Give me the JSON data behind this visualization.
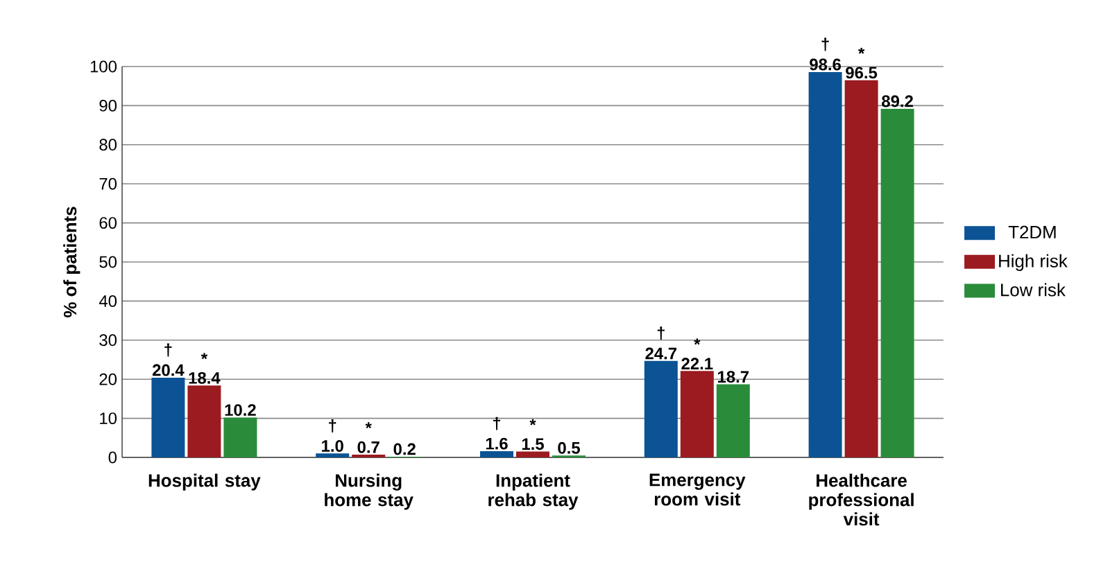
{
  "chart_data": {
    "type": "bar",
    "ylabel": "% of patients",
    "categories": [
      "Hospital stay",
      "Nursing home stay",
      "Inpatient rehab stay",
      "Emergency room visit",
      "Healthcare professional visit"
    ],
    "series": [
      {
        "name": "T2DM",
        "color": "#0b5394",
        "values": [
          20.4,
          1.0,
          1.6,
          24.7,
          98.6
        ],
        "value_labels": [
          "20.4",
          "1.0",
          "1.6",
          "24.7",
          "98.6"
        ]
      },
      {
        "name": "High risk",
        "color": "#9b1b20",
        "values": [
          18.4,
          0.7,
          1.5,
          22.1,
          96.5
        ],
        "value_labels": [
          "18.4",
          "0.7",
          "1.5",
          "22.1",
          "96.5"
        ]
      },
      {
        "name": "Low risk",
        "color": "#2a8c3a",
        "values": [
          10.2,
          0.2,
          0.5,
          18.7,
          89.2
        ],
        "value_labels": [
          "10.2",
          "0.2",
          "0.5",
          "18.7",
          "89.2"
        ]
      }
    ],
    "annotations": [
      "†",
      "*",
      "†",
      "*",
      "†",
      "*",
      "†",
      "*",
      "†",
      "*"
    ],
    "ylim": [
      0,
      100
    ],
    "yticks": [
      0,
      10,
      20,
      30,
      40,
      50,
      60,
      70,
      80,
      90,
      100
    ],
    "grid": "y",
    "legend": "right"
  }
}
